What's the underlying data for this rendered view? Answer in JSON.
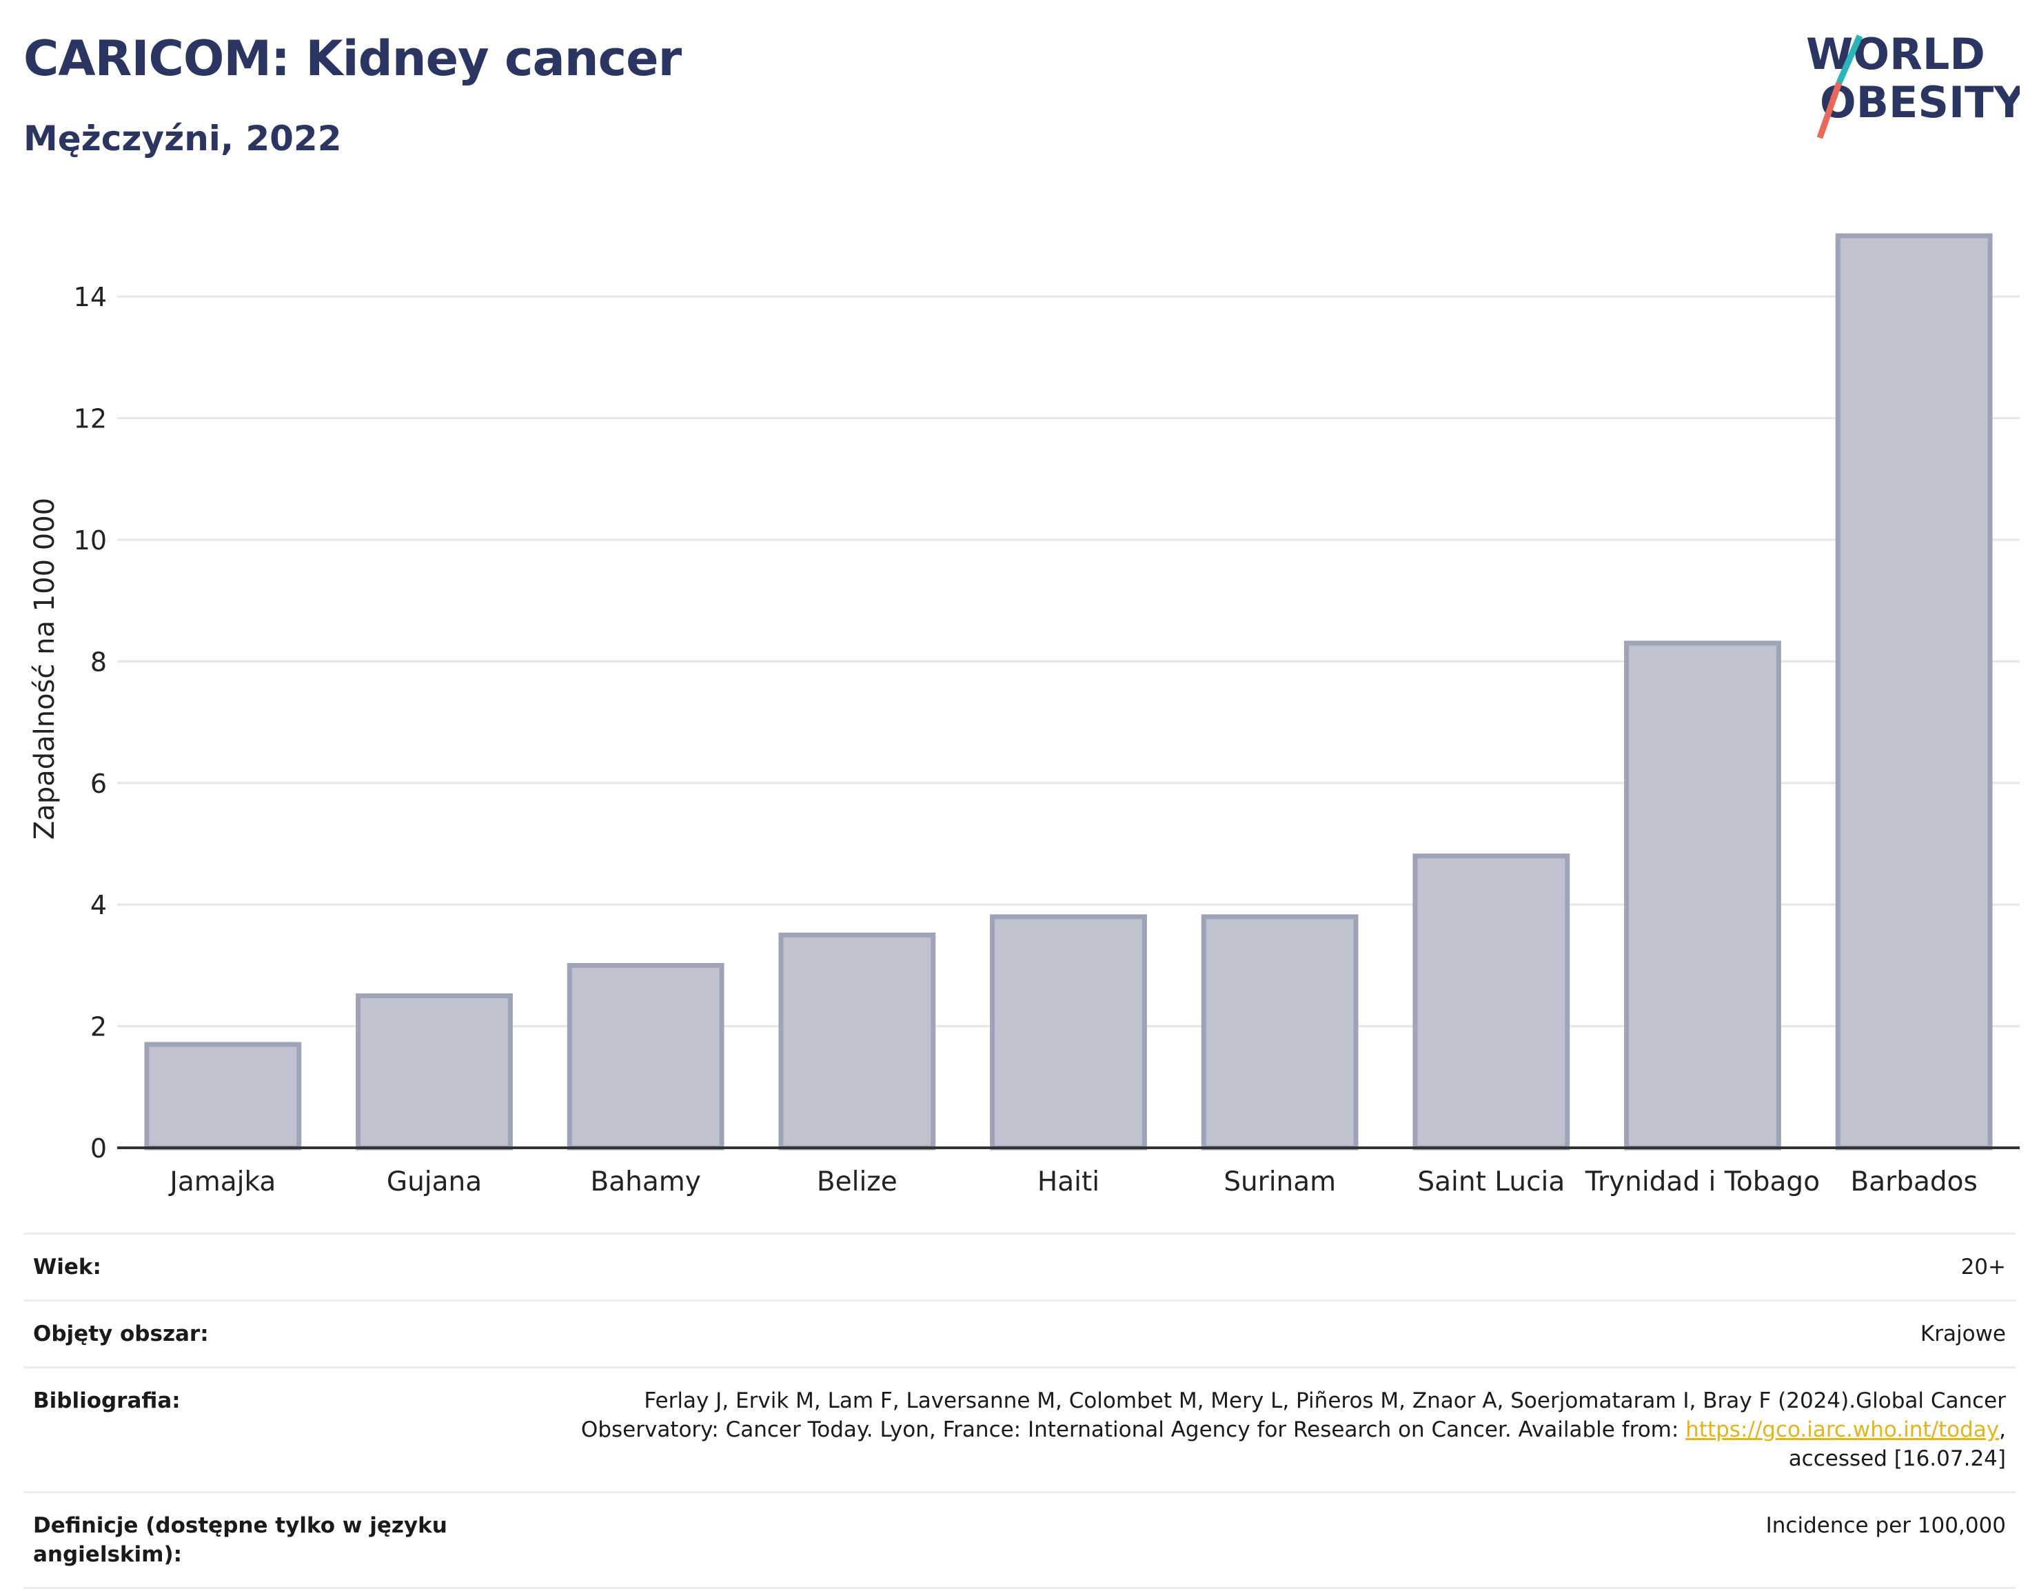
{
  "title": "CARICOM: Kidney cancer",
  "subtitle": "Mężczyźni, 2022",
  "logo": {
    "line1": "WORLD",
    "line2": "OBESITY",
    "accent_teal": "#2bb5b8",
    "accent_coral": "#e8685a"
  },
  "colors": {
    "bar_fill": "#bfc3d0",
    "bar_stroke": "#9ea3b8",
    "title": "#2b3562",
    "grid": "#e6e6e6",
    "axis": "#333333"
  },
  "chart_data": {
    "type": "bar",
    "categories": [
      "Jamajka",
      "Gujana",
      "Bahamy",
      "Belize",
      "Haiti",
      "Surinam",
      "Saint Lucia",
      "Trynidad i Tobago",
      "Barbados"
    ],
    "values": [
      1.7,
      2.5,
      3.0,
      3.5,
      3.8,
      3.8,
      4.8,
      8.3,
      15.0
    ],
    "ylabel": "Zapadalność na 100 000",
    "yticks": [
      0,
      2,
      4,
      6,
      8,
      10,
      12,
      14
    ],
    "ylim": [
      0,
      15.5
    ],
    "grid": true
  },
  "meta": [
    {
      "label": "Wiek:",
      "value": "20+"
    },
    {
      "label": "Objęty obszar:",
      "value": "Krajowe"
    },
    {
      "label": "Bibliografia:",
      "value_pre": "Ferlay J, Ervik M, Lam F, Laversanne M, Colombet M, Mery L, Piñeros M, Znaor A, Soerjomataram I, Bray F (2024).Global Cancer Observatory: Cancer Today. Lyon, France: International Agency for Research on Cancer. Available from: ",
      "link": "https://gco.iarc.who.int/today",
      "value_post": ", accessed [16.07.24]"
    },
    {
      "label": "Definicje (dostępne tylko w języku angielskim):",
      "value": "Incidence per 100,000"
    }
  ]
}
